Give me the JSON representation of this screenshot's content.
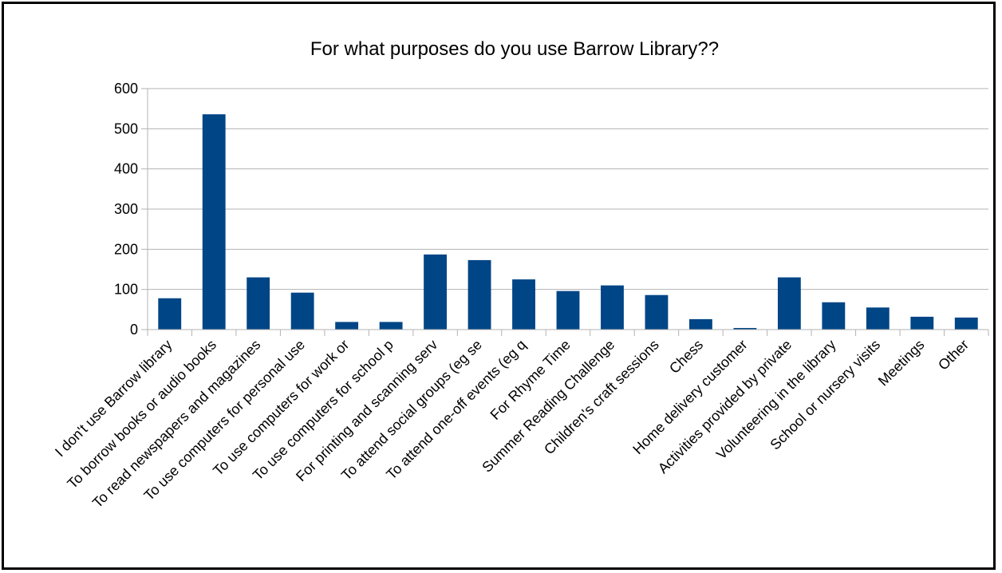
{
  "chart_data": {
    "type": "bar",
    "title": "For what purposes do you use Barrow Library??",
    "xlabel": "",
    "ylabel": "",
    "ylim": [
      0,
      600
    ],
    "yticks": [
      0,
      100,
      200,
      300,
      400,
      500,
      600
    ],
    "grid": true,
    "legend": "none",
    "bar_color": "#004586",
    "categories": [
      "I don't use Barrow library",
      "To borrow books or audio books",
      "To read newspapers and magazines",
      "To use computers for personal use",
      "To use computers for work or",
      "To use computers for school p",
      "For printing and scanning serv",
      "To attend social groups (eg se",
      "To attend one-off events (eg q",
      "For Rhyme Time",
      "Summer Reading Challenge",
      "Children's craft sessions",
      "Chess",
      "Home delivery customer",
      "Activities provided by private",
      "Volunteering in the library",
      "School or nursery visits",
      "Meetings",
      "Other"
    ],
    "values": [
      78,
      536,
      130,
      92,
      19,
      19,
      187,
      173,
      125,
      96,
      110,
      86,
      26,
      4,
      130,
      68,
      55,
      32,
      30
    ]
  }
}
